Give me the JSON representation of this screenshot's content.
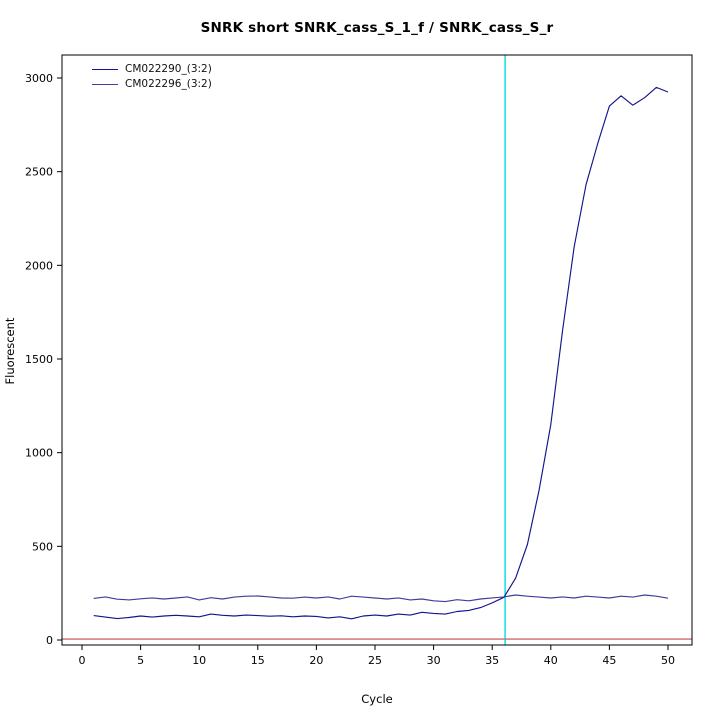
{
  "title": "SNRK short SNRK_cass_S_1_f / SNRK_cass_S_r",
  "chart_data": {
    "type": "line",
    "title": "SNRK short SNRK_cass_S_1_f / SNRK_cass_S_r",
    "xlabel": "Cycle",
    "ylabel": "Fluorescent",
    "xlim": [
      0,
      50
    ],
    "ylim": [
      0,
      3000
    ],
    "xticks": [
      0,
      5,
      10,
      15,
      20,
      25,
      30,
      35,
      40,
      45,
      50
    ],
    "yticks": [
      0,
      500,
      1000,
      1500,
      2000,
      2500,
      3000
    ],
    "grid": false,
    "legend_position": "top-left",
    "background": "#ffffff",
    "box_color": "#000000",
    "threshold_line": {
      "y": 5,
      "color": "#cd6a6a"
    },
    "cycle_marker_line": {
      "x": 36.1,
      "color": "#00dcdc"
    },
    "series": [
      {
        "name": "CM022290_(3:2)",
        "color": "#14148c",
        "x": [
          1,
          2,
          3,
          4,
          5,
          6,
          7,
          8,
          9,
          10,
          11,
          12,
          13,
          14,
          15,
          16,
          17,
          18,
          19,
          20,
          21,
          22,
          23,
          24,
          25,
          26,
          27,
          28,
          29,
          30,
          31,
          32,
          33,
          34,
          35,
          36,
          37,
          38,
          39,
          40,
          41,
          42,
          43,
          44,
          45,
          46,
          47,
          48,
          49,
          50
        ],
        "values": [
          130,
          122,
          114,
          120,
          128,
          122,
          128,
          132,
          128,
          124,
          138,
          132,
          128,
          133,
          130,
          127,
          129,
          124,
          128,
          126,
          118,
          124,
          113,
          128,
          133,
          128,
          138,
          133,
          148,
          142,
          138,
          152,
          158,
          173,
          198,
          228,
          330,
          510,
          800,
          1150,
          1650,
          2100,
          2430,
          2650,
          2850,
          2905,
          2855,
          2895,
          2950,
          2925
        ]
      },
      {
        "name": "CM022296_(3:2)",
        "color": "#3f3f9a",
        "x": [
          1,
          2,
          3,
          4,
          5,
          6,
          7,
          8,
          9,
          10,
          11,
          12,
          13,
          14,
          15,
          16,
          17,
          18,
          19,
          20,
          21,
          22,
          23,
          24,
          25,
          26,
          27,
          28,
          29,
          30,
          31,
          32,
          33,
          34,
          35,
          36,
          37,
          38,
          39,
          40,
          41,
          42,
          43,
          44,
          45,
          46,
          47,
          48,
          49,
          50
        ],
        "values": [
          222,
          230,
          218,
          214,
          220,
          225,
          219,
          224,
          230,
          214,
          226,
          219,
          229,
          234,
          235,
          230,
          224,
          223,
          229,
          224,
          230,
          219,
          234,
          229,
          224,
          219,
          225,
          214,
          219,
          209,
          205,
          215,
          209,
          219,
          225,
          230,
          240,
          234,
          229,
          224,
          230,
          224,
          234,
          229,
          224,
          234,
          229,
          240,
          234,
          223
        ]
      }
    ]
  }
}
